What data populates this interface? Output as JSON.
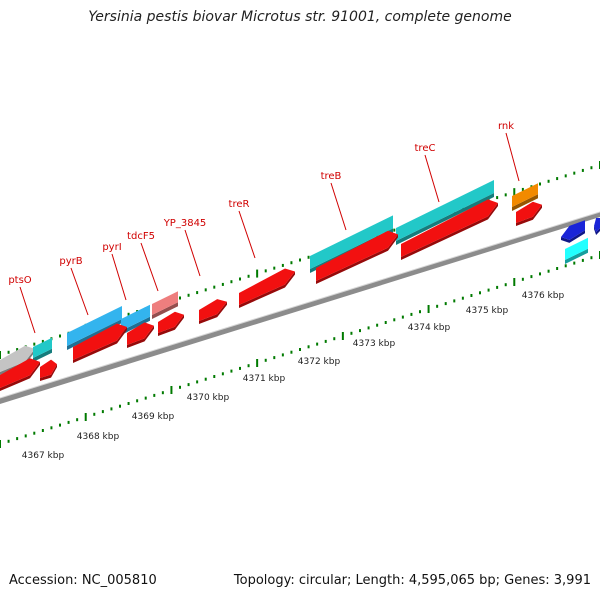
{
  "title": "Yersinia pestis biovar Microtus str. 91001, complete genome",
  "footer": {
    "accession_label": "Accession: NC_005810",
    "stats": "Topology: circular; Length: 4,595,065 bp; Genes: 3,991"
  },
  "colors": {
    "background": "#ffffff",
    "genome_line": "#8c8c8c",
    "tick_green": "#007a00",
    "gene_label": "#d00000",
    "scale_label": "#222222",
    "red_gene": "#f21010",
    "cyan_gene": "#22c8c8",
    "blue_gene": "#33b4ee",
    "pink_gene": "#ee7e7e",
    "orange_gene": "#f28a00",
    "grey_gene": "#c4c4c4",
    "dark_blue_gene": "#1a25d8",
    "light_cyan_gene": "#22ffff"
  },
  "scale_labels": [
    "4367 kbp",
    "4368 kbp",
    "4369 kbp",
    "4370 kbp",
    "4371 kbp",
    "4372 kbp",
    "4373 kbp",
    "4374 kbp",
    "4375 kbp",
    "4376 kbp"
  ],
  "gene_labels": [
    "ptsO",
    "pyrB",
    "pyrI",
    "tdcF5",
    "YP_3845",
    "treR",
    "treB",
    "treC",
    "rnk"
  ]
}
